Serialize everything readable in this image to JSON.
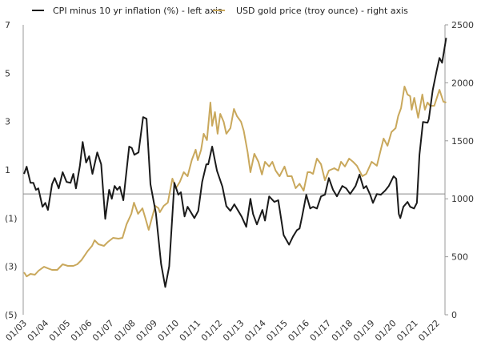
{
  "chart_data": {
    "type": "line",
    "title": "",
    "legend": {
      "placement": "top",
      "entries": [
        {
          "label": "CPI minus 10 yr inflation (%) - left axis",
          "color": "#1a1a1a"
        },
        {
          "label": "USD gold price (troy ounce) - right axis",
          "color": "#C9A85C"
        }
      ]
    },
    "left_axis": {
      "ylim": [
        -5,
        7
      ],
      "ticks": [
        7,
        5,
        3,
        1,
        -1,
        -3,
        -5
      ],
      "tick_labels": [
        "7",
        "5",
        "3",
        "1",
        "(1)",
        "(3)",
        "(5)"
      ]
    },
    "right_axis": {
      "ylim": [
        0,
        2500
      ],
      "ticks": [
        2500,
        2000,
        1500,
        1000,
        500,
        0
      ],
      "tick_labels": [
        "2500",
        "2000",
        "1500",
        "1000",
        "500",
        "0"
      ]
    },
    "x_axis": {
      "xlim": [
        2003.0,
        2022.45
      ],
      "ticks": [
        2003,
        2004,
        2005,
        2006,
        2007,
        2008,
        2009,
        2010,
        2011,
        2012,
        2013,
        2014,
        2015,
        2016,
        2017,
        2018,
        2019,
        2020,
        2021,
        2022
      ],
      "tick_labels": [
        "01/03",
        "01/04",
        "01/05",
        "01/06",
        "01/07",
        "01/08",
        "01/09",
        "01/10",
        "01/11",
        "01/12",
        "01/13",
        "01/14",
        "01/15",
        "01/16",
        "01/17",
        "01/18",
        "01/19",
        "01/20",
        "01/21",
        "01/22"
      ]
    },
    "reference_line": 0,
    "series": [
      {
        "name": "CPI minus 10 yr inflation (%) - left axis",
        "axis": "left",
        "color": "#1a1a1a",
        "points": [
          [
            2003.0,
            0.83
          ],
          [
            2003.12,
            1.13
          ],
          [
            2003.3,
            0.46
          ],
          [
            2003.43,
            0.46
          ],
          [
            2003.55,
            0.17
          ],
          [
            2003.66,
            0.23
          ],
          [
            2003.85,
            -0.53
          ],
          [
            2003.98,
            -0.37
          ],
          [
            2004.1,
            -0.66
          ],
          [
            2004.29,
            0.4
          ],
          [
            2004.41,
            0.66
          ],
          [
            2004.6,
            0.23
          ],
          [
            2004.78,
            0.9
          ],
          [
            2004.96,
            0.5
          ],
          [
            2005.14,
            0.46
          ],
          [
            2005.27,
            0.83
          ],
          [
            2005.39,
            0.23
          ],
          [
            2005.57,
            1.16
          ],
          [
            2005.7,
            2.15
          ],
          [
            2005.86,
            1.3
          ],
          [
            2006.0,
            1.56
          ],
          [
            2006.15,
            0.83
          ],
          [
            2006.37,
            1.72
          ],
          [
            2006.55,
            1.23
          ],
          [
            2006.74,
            -1.03
          ],
          [
            2006.92,
            0.17
          ],
          [
            2007.04,
            -0.2
          ],
          [
            2007.17,
            0.33
          ],
          [
            2007.29,
            0.17
          ],
          [
            2007.41,
            0.3
          ],
          [
            2007.57,
            -0.26
          ],
          [
            2007.84,
            1.96
          ],
          [
            2007.96,
            1.9
          ],
          [
            2008.08,
            1.62
          ],
          [
            2008.27,
            1.72
          ],
          [
            2008.48,
            3.18
          ],
          [
            2008.64,
            3.11
          ],
          [
            2008.82,
            0.4
          ],
          [
            2009.07,
            -0.8
          ],
          [
            2009.31,
            -2.9
          ],
          [
            2009.5,
            -3.85
          ],
          [
            2009.68,
            -3.0
          ],
          [
            2009.92,
            0.46
          ],
          [
            2010.1,
            -0.03
          ],
          [
            2010.22,
            0.07
          ],
          [
            2010.39,
            -0.93
          ],
          [
            2010.53,
            -0.53
          ],
          [
            2010.84,
            -1.0
          ],
          [
            2011.02,
            -0.7
          ],
          [
            2011.2,
            0.5
          ],
          [
            2011.39,
            1.23
          ],
          [
            2011.48,
            1.23
          ],
          [
            2011.66,
            1.96
          ],
          [
            2011.88,
            0.96
          ],
          [
            2012.13,
            0.3
          ],
          [
            2012.31,
            -0.5
          ],
          [
            2012.5,
            -0.7
          ],
          [
            2012.68,
            -0.43
          ],
          [
            2012.86,
            -0.7
          ],
          [
            2013.01,
            -0.93
          ],
          [
            2013.23,
            -1.36
          ],
          [
            2013.42,
            -0.2
          ],
          [
            2013.54,
            -0.83
          ],
          [
            2013.72,
            -1.26
          ],
          [
            2013.97,
            -0.66
          ],
          [
            2014.09,
            -1.1
          ],
          [
            2014.28,
            -0.1
          ],
          [
            2014.52,
            -0.33
          ],
          [
            2014.7,
            -0.26
          ],
          [
            2014.95,
            -1.7
          ],
          [
            2015.2,
            -2.1
          ],
          [
            2015.38,
            -1.76
          ],
          [
            2015.56,
            -1.5
          ],
          [
            2015.68,
            -1.43
          ],
          [
            2015.8,
            -0.93
          ],
          [
            2015.99,
            -0.03
          ],
          [
            2016.17,
            -0.6
          ],
          [
            2016.3,
            -0.53
          ],
          [
            2016.48,
            -0.6
          ],
          [
            2016.67,
            -0.1
          ],
          [
            2016.85,
            -0.03
          ],
          [
            2017.03,
            0.66
          ],
          [
            2017.22,
            0.17
          ],
          [
            2017.4,
            -0.1
          ],
          [
            2017.65,
            0.33
          ],
          [
            2017.83,
            0.23
          ],
          [
            2018.01,
            0.0
          ],
          [
            2018.26,
            0.33
          ],
          [
            2018.44,
            0.8
          ],
          [
            2018.63,
            0.23
          ],
          [
            2018.75,
            0.33
          ],
          [
            2018.93,
            -0.03
          ],
          [
            2019.06,
            -0.37
          ],
          [
            2019.24,
            0.0
          ],
          [
            2019.42,
            -0.03
          ],
          [
            2019.61,
            0.13
          ],
          [
            2019.79,
            0.33
          ],
          [
            2020.01,
            0.73
          ],
          [
            2020.13,
            0.63
          ],
          [
            2020.25,
            -0.83
          ],
          [
            2020.32,
            -1.0
          ],
          [
            2020.46,
            -0.53
          ],
          [
            2020.65,
            -0.33
          ],
          [
            2020.77,
            -0.53
          ],
          [
            2020.95,
            -0.6
          ],
          [
            2021.08,
            -0.37
          ],
          [
            2021.2,
            1.62
          ],
          [
            2021.36,
            2.98
          ],
          [
            2021.57,
            2.95
          ],
          [
            2021.63,
            3.1
          ],
          [
            2021.81,
            4.3
          ],
          [
            2021.99,
            5.1
          ],
          [
            2022.12,
            5.63
          ],
          [
            2022.24,
            5.43
          ],
          [
            2022.43,
            6.46
          ]
        ]
      },
      {
        "name": "USD gold price (troy ounce) - right axis",
        "axis": "right",
        "color": "#C9A85C",
        "points": [
          [
            2003.0,
            366
          ],
          [
            2003.12,
            331
          ],
          [
            2003.3,
            352
          ],
          [
            2003.5,
            345
          ],
          [
            2003.67,
            380
          ],
          [
            2003.92,
            414
          ],
          [
            2004.1,
            400
          ],
          [
            2004.29,
            387
          ],
          [
            2004.53,
            387
          ],
          [
            2004.78,
            435
          ],
          [
            2005.02,
            421
          ],
          [
            2005.27,
            421
          ],
          [
            2005.45,
            435
          ],
          [
            2005.64,
            470
          ],
          [
            2005.94,
            552
          ],
          [
            2006.13,
            594
          ],
          [
            2006.25,
            642
          ],
          [
            2006.43,
            608
          ],
          [
            2006.68,
            594
          ],
          [
            2006.86,
            628
          ],
          [
            2007.1,
            663
          ],
          [
            2007.35,
            656
          ],
          [
            2007.53,
            663
          ],
          [
            2007.72,
            780
          ],
          [
            2007.94,
            870
          ],
          [
            2008.06,
            967
          ],
          [
            2008.25,
            870
          ],
          [
            2008.45,
            918
          ],
          [
            2008.58,
            836
          ],
          [
            2008.74,
            732
          ],
          [
            2008.88,
            829
          ],
          [
            2009.04,
            939
          ],
          [
            2009.19,
            918
          ],
          [
            2009.25,
            884
          ],
          [
            2009.43,
            939
          ],
          [
            2009.62,
            967
          ],
          [
            2009.83,
            1174
          ],
          [
            2009.99,
            1091
          ],
          [
            2010.17,
            1146
          ],
          [
            2010.35,
            1229
          ],
          [
            2010.53,
            1195
          ],
          [
            2010.72,
            1333
          ],
          [
            2010.9,
            1423
          ],
          [
            2011.0,
            1333
          ],
          [
            2011.15,
            1423
          ],
          [
            2011.27,
            1561
          ],
          [
            2011.42,
            1506
          ],
          [
            2011.58,
            1830
          ],
          [
            2011.66,
            1630
          ],
          [
            2011.79,
            1747
          ],
          [
            2011.91,
            1561
          ],
          [
            2012.03,
            1733
          ],
          [
            2012.19,
            1664
          ],
          [
            2012.31,
            1561
          ],
          [
            2012.5,
            1609
          ],
          [
            2012.66,
            1775
          ],
          [
            2012.8,
            1713
          ],
          [
            2012.99,
            1664
          ],
          [
            2013.11,
            1588
          ],
          [
            2013.29,
            1402
          ],
          [
            2013.42,
            1229
          ],
          [
            2013.6,
            1388
          ],
          [
            2013.79,
            1319
          ],
          [
            2013.95,
            1209
          ],
          [
            2014.09,
            1319
          ],
          [
            2014.28,
            1278
          ],
          [
            2014.43,
            1319
          ],
          [
            2014.58,
            1243
          ],
          [
            2014.76,
            1195
          ],
          [
            2014.99,
            1278
          ],
          [
            2015.13,
            1195
          ],
          [
            2015.32,
            1195
          ],
          [
            2015.5,
            1091
          ],
          [
            2015.68,
            1130
          ],
          [
            2015.87,
            1070
          ],
          [
            2016.05,
            1229
          ],
          [
            2016.17,
            1229
          ],
          [
            2016.3,
            1215
          ],
          [
            2016.48,
            1347
          ],
          [
            2016.67,
            1298
          ],
          [
            2016.85,
            1160
          ],
          [
            2017.03,
            1243
          ],
          [
            2017.28,
            1264
          ],
          [
            2017.46,
            1243
          ],
          [
            2017.59,
            1319
          ],
          [
            2017.77,
            1278
          ],
          [
            2017.96,
            1347
          ],
          [
            2018.14,
            1319
          ],
          [
            2018.32,
            1285
          ],
          [
            2018.57,
            1195
          ],
          [
            2018.75,
            1215
          ],
          [
            2019.0,
            1319
          ],
          [
            2019.24,
            1285
          ],
          [
            2019.42,
            1423
          ],
          [
            2019.55,
            1519
          ],
          [
            2019.73,
            1457
          ],
          [
            2019.91,
            1575
          ],
          [
            2020.1,
            1609
          ],
          [
            2020.22,
            1713
          ],
          [
            2020.35,
            1782
          ],
          [
            2020.51,
            1968
          ],
          [
            2020.65,
            1899
          ],
          [
            2020.77,
            1885
          ],
          [
            2020.84,
            1768
          ],
          [
            2020.96,
            1871
          ],
          [
            2021.14,
            1699
          ],
          [
            2021.33,
            1899
          ],
          [
            2021.45,
            1768
          ],
          [
            2021.57,
            1830
          ],
          [
            2021.69,
            1802
          ],
          [
            2021.88,
            1802
          ],
          [
            2022.12,
            1940
          ],
          [
            2022.3,
            1837
          ],
          [
            2022.43,
            1830
          ]
        ]
      }
    ]
  }
}
